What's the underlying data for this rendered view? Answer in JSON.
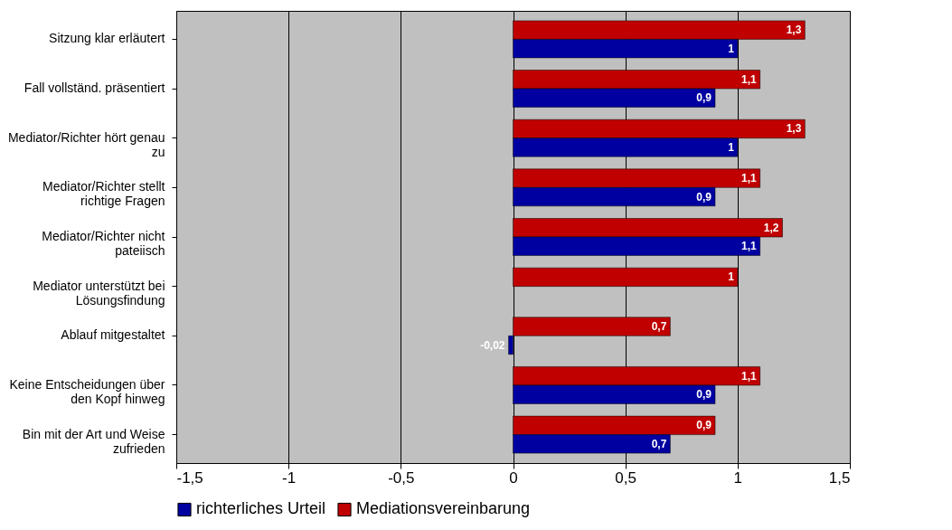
{
  "chart_data": {
    "type": "bar",
    "orientation": "horizontal",
    "categories": [
      "Sitzung klar erläutert",
      "Fall vollständ. präsentiert",
      "Mediator/Richter hört genau zu",
      "Mediator/Richter stellt richtige Fragen",
      "Mediator/Richter nicht pateiisch",
      "Mediator unterstützt bei Lösungsfindung",
      "Ablauf mitgestaltet",
      "Keine Entscheidungen über den Kopf hinweg",
      "Bin mit der Art und Weise zufrieden"
    ],
    "series": [
      {
        "name": "Mediationsvereinbarung",
        "color": "#c00000",
        "values": [
          1.3,
          1.1,
          1.3,
          1.1,
          1.2,
          1,
          0.7,
          1.1,
          0.9
        ],
        "value_labels": [
          "1,3",
          "1,1",
          "1,3",
          "1,1",
          "1,2",
          "1",
          "0,7",
          "1,1",
          "0,9"
        ]
      },
      {
        "name": "richterliches Urteil",
        "color": "#0000a0",
        "values": [
          1,
          0.9,
          1,
          0.9,
          1.1,
          null,
          -0.02,
          0.9,
          0.7
        ],
        "value_labels": [
          "1",
          "0,9",
          "1",
          "0,9",
          "1,1",
          null,
          "-0,02",
          "0,9",
          "0,7"
        ]
      }
    ],
    "xlim": [
      -1.5,
      1.5
    ],
    "xticks": [
      {
        "value": -1.5,
        "label": "-1,5"
      },
      -1,
      {
        "value": -0.5,
        "label": "-0,5"
      },
      0,
      {
        "value": 0.5,
        "label": "0,5"
      },
      1,
      {
        "value": 1.5,
        "label": "1,5"
      }
    ],
    "grid": "x",
    "legend": "bottom"
  }
}
